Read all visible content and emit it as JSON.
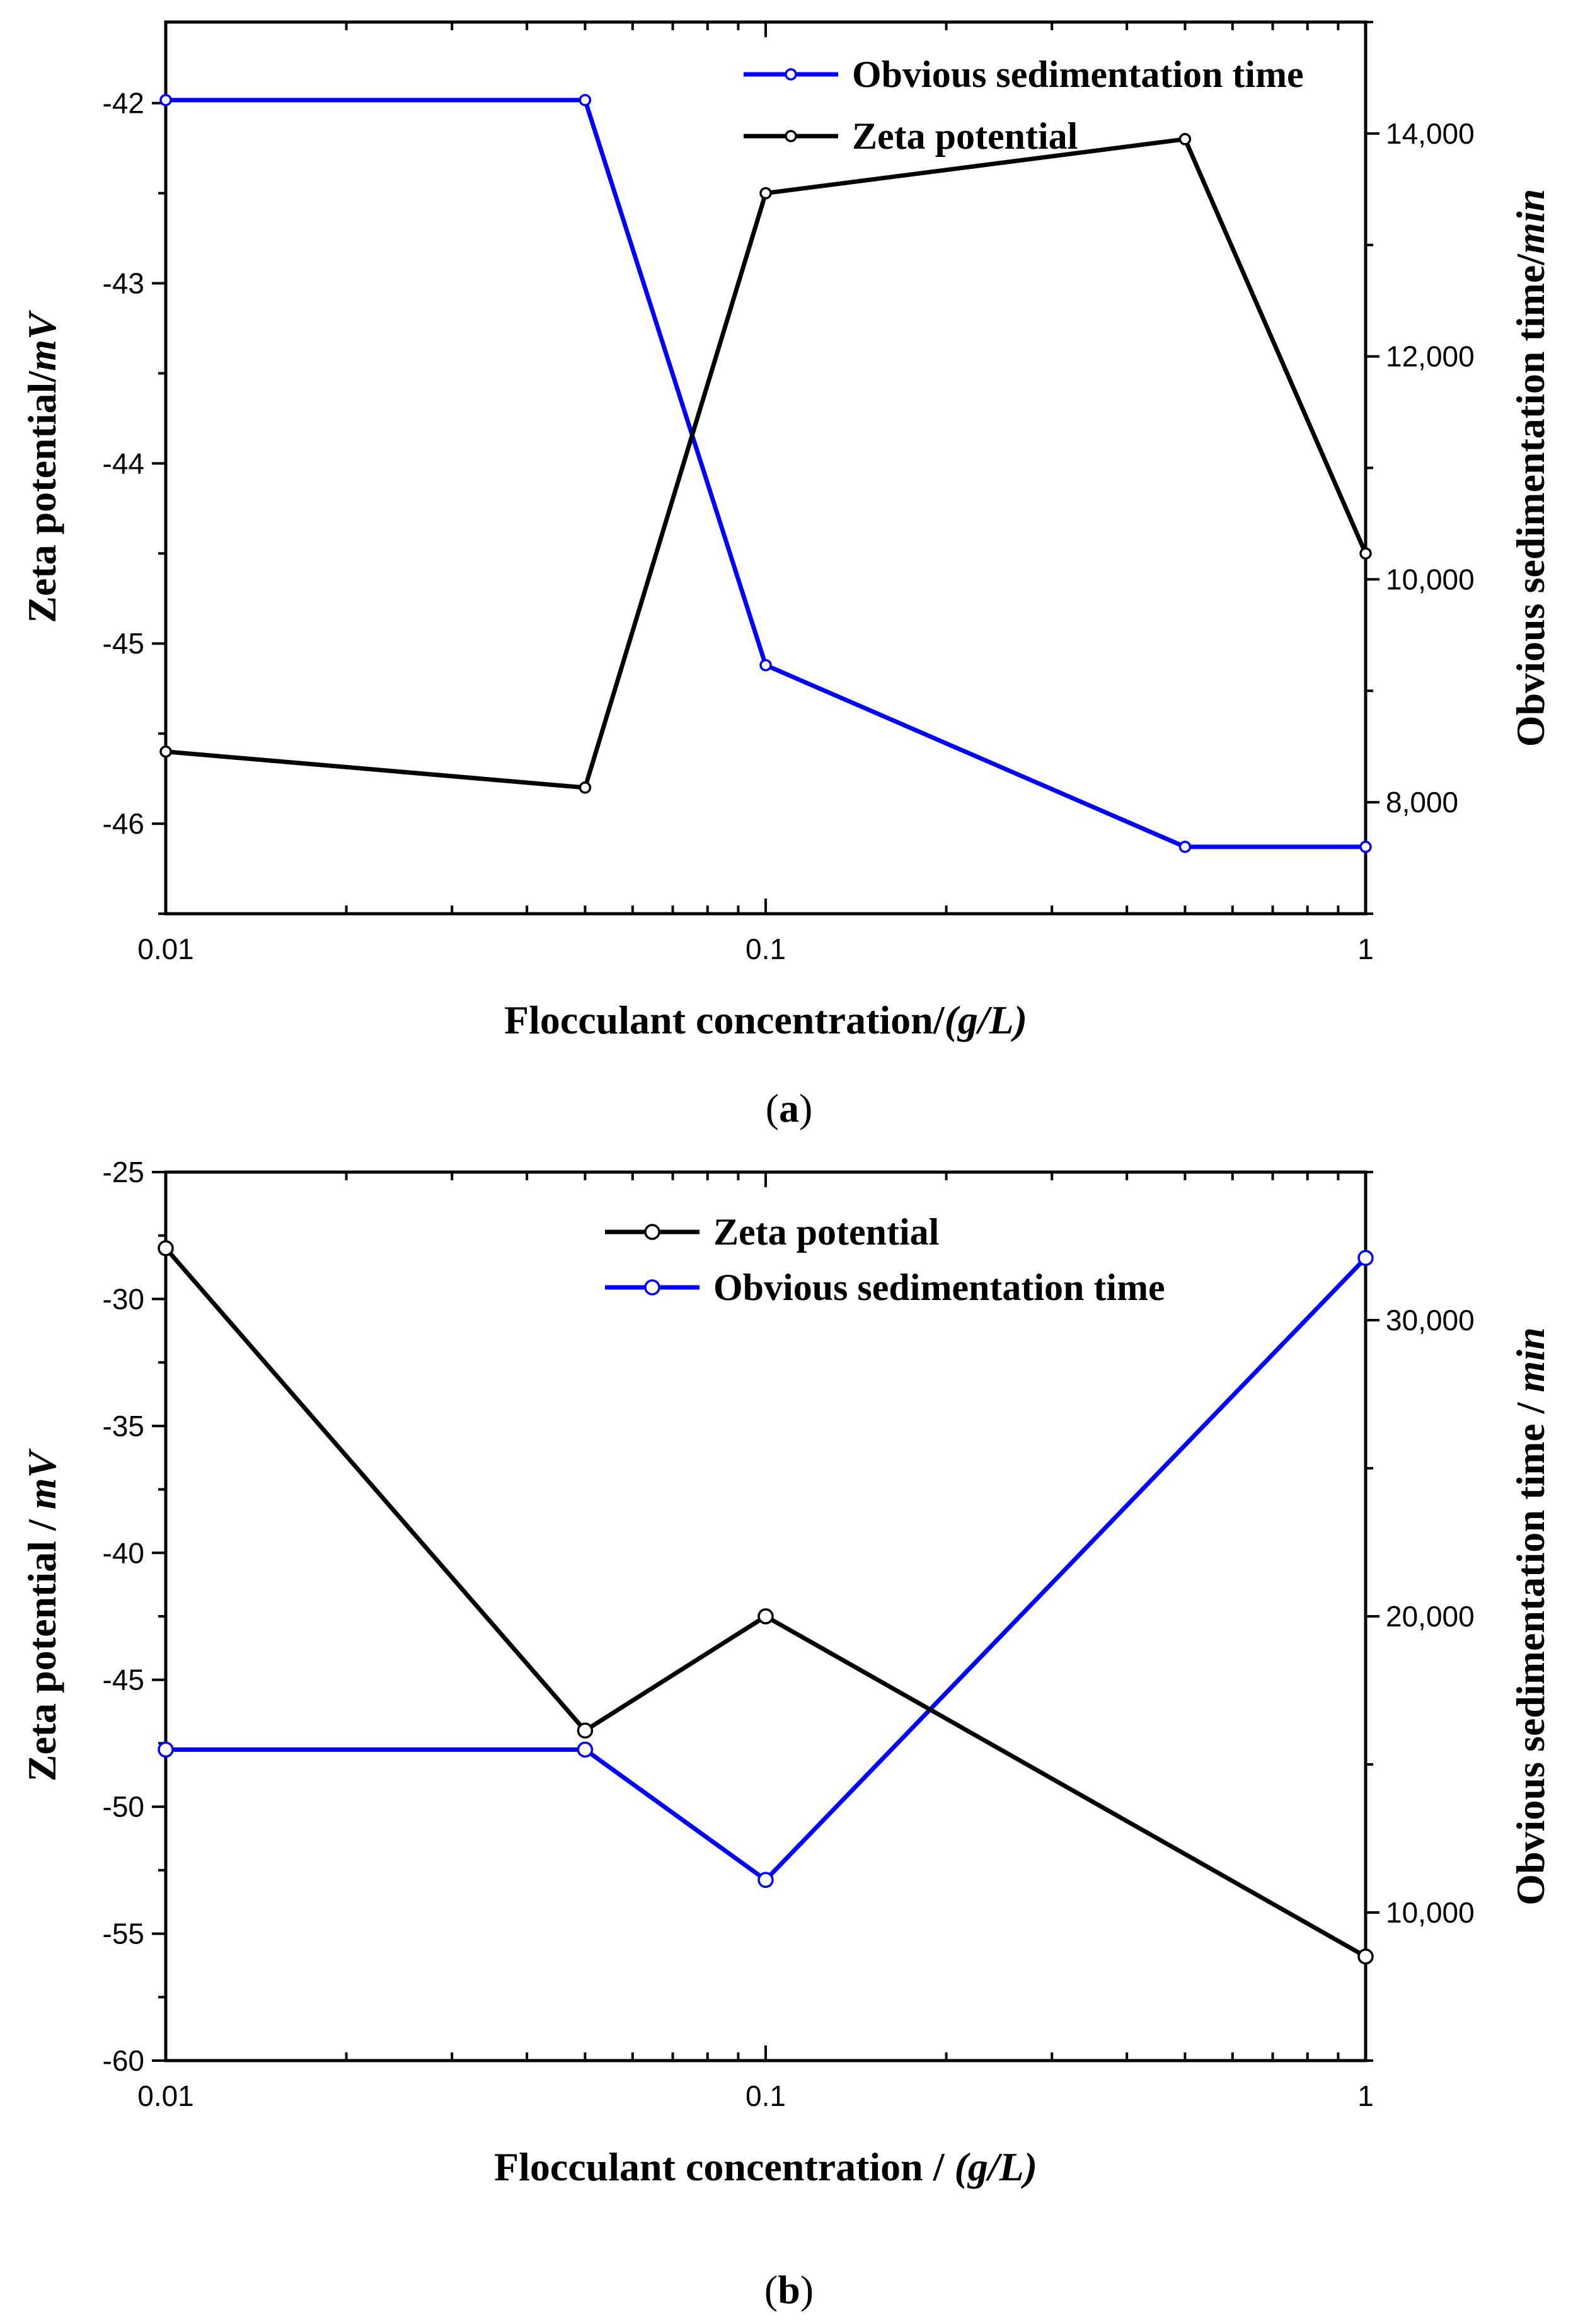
{
  "chart_data": [
    {
      "type": "line",
      "panel_label": "a",
      "xscale": "log",
      "xlim": [
        0.01,
        1
      ],
      "x_ticks": [
        0.01,
        0.1,
        1
      ],
      "x_tick_labels": [
        "0.01",
        "0.1",
        "1"
      ],
      "xlabel": "Flocculant concentration/",
      "xlabel_unit": "(g/L)",
      "ylabel_left": "Zeta potential/",
      "ylabel_left_unit": "mV",
      "ylim_left": [
        -46.5,
        -41.55
      ],
      "yticks_left": [
        -46,
        -45,
        -44,
        -43,
        -42
      ],
      "ytick_labels_left": [
        "-46",
        "-45",
        "-44",
        "-43",
        "-42"
      ],
      "ylabel_right": "Obvious sedimentation time/",
      "ylabel_right_unit": "min",
      "ylim_right": [
        7000,
        15000
      ],
      "yticks_right": [
        8000,
        10000,
        12000,
        14000
      ],
      "ytick_labels_right": [
        "8,000",
        "10,000",
        "12,000",
        "14,000"
      ],
      "legend_position": "top-right",
      "legend_order": [
        0,
        1
      ],
      "series": [
        {
          "name": "Obvious sedimentation time",
          "axis": "right",
          "color": "#0000ff",
          "x": [
            0.01,
            0.05,
            0.1,
            0.5,
            1
          ],
          "values": [
            14300,
            14300,
            9230,
            7600,
            7600
          ]
        },
        {
          "name": "Zeta potential",
          "axis": "left",
          "color": "#000000",
          "x": [
            0.01,
            0.05,
            0.1,
            0.5,
            1
          ],
          "values": [
            -45.6,
            -45.8,
            -42.5,
            -42.2,
            -44.5
          ]
        }
      ]
    },
    {
      "type": "line",
      "panel_label": "b",
      "xscale": "log",
      "xlim": [
        0.01,
        1
      ],
      "x_ticks": [
        0.01,
        0.1,
        1
      ],
      "x_tick_labels": [
        "0.01",
        "0.1",
        "1"
      ],
      "xlabel": "Flocculant concentration / ",
      "xlabel_unit": "(g/L)",
      "ylabel_left": "Zeta potential / ",
      "ylabel_left_unit": "mV",
      "ylim_left": [
        -60,
        -25
      ],
      "yticks_left": [
        -60,
        -55,
        -50,
        -45,
        -40,
        -35,
        -30,
        -25
      ],
      "ytick_labels_left": [
        "-60",
        "-55",
        "-50",
        "-45",
        "-40",
        "-35",
        "-30",
        "-25"
      ],
      "ylabel_right": "Obvious sedimentation time / ",
      "ylabel_right_unit": "min",
      "ylim_right": [
        5000,
        35000
      ],
      "yticks_right": [
        10000,
        20000,
        30000
      ],
      "ytick_labels_right": [
        "10,000",
        "20,000",
        "30,000"
      ],
      "legend_position": "top-right",
      "legend_order": [
        1,
        0
      ],
      "series": [
        {
          "name": "Obvious sedimentation time",
          "axis": "right",
          "color": "#0000ff",
          "x": [
            0.01,
            0.05,
            0.1,
            1
          ],
          "values": [
            15500,
            15500,
            11100,
            32100
          ]
        },
        {
          "name": "Zeta potential",
          "axis": "left",
          "color": "#000000",
          "x": [
            0.01,
            0.05,
            0.1,
            1
          ],
          "values": [
            -28,
            -47,
            -42.5,
            -55.9
          ]
        }
      ]
    }
  ]
}
